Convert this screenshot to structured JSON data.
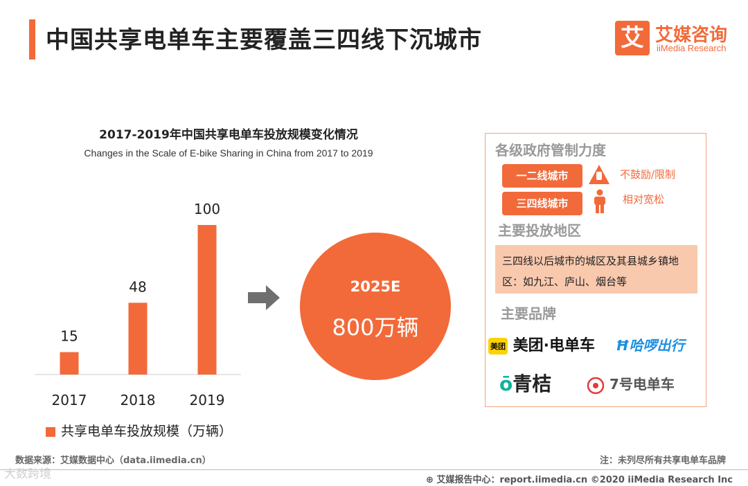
{
  "header": {
    "title": "中国共享电单车主要覆盖三四线下沉城市",
    "logo_mark": "艾",
    "logo_cn": "艾媒咨询",
    "logo_en": "iiMedia Research"
  },
  "chart_data": {
    "type": "bar",
    "title": "2017-2019年中国共享电单车投放规模变化情况",
    "subtitle": "Changes in the Scale of E-bike Sharing in China from 2017 to 2019",
    "categories": [
      "2017",
      "2018",
      "2019"
    ],
    "values": [
      15,
      48,
      100
    ],
    "series_name": "共享电单车投放规模（万辆）",
    "ylim": [
      0,
      100
    ],
    "grid": false,
    "color": "#f26a3a"
  },
  "forecast": {
    "year": "2025E",
    "value": "800万辆"
  },
  "panel": {
    "gov_heading": "各级政府管制力度",
    "tier1_label": "一二线城市",
    "tier1_note": "不鼓励/限制",
    "tier34_label": "三四线城市",
    "tier34_note": "相对宽松",
    "region_heading": "主要投放地区",
    "region_text": "三四线以后城市的城区及其县城乡镇地区：如九江、庐山、烟台等",
    "brand_heading": "主要品牌",
    "brands": [
      "美团·电单车",
      "哈啰出行",
      "青桔",
      "7号电单车"
    ],
    "brand_meituan_mark": "美团"
  },
  "footer": {
    "source": "数据来源：艾媒数据中心（data.iimedia.cn）",
    "note": "注：未列尽所有共享电单车品牌",
    "report": "艾媒报告中心：report.iimedia.cn ©2020  iiMedia Research  Inc",
    "watermark": "大数跨境"
  },
  "colors": {
    "accent": "#f26a3a",
    "light_accent": "#f9c9ae",
    "meituan": "#ffd100",
    "hellobike": "#1d8fe1",
    "qingju": "#13b29d",
    "seven": "#e4393c"
  }
}
